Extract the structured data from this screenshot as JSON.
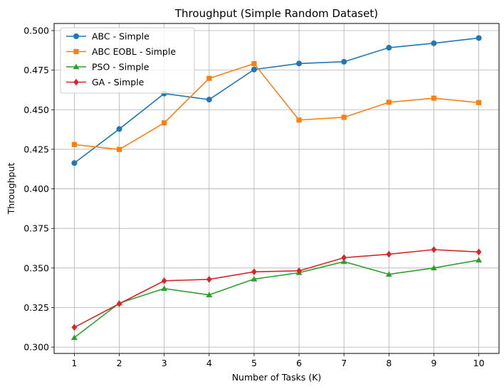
{
  "chart_data": {
    "type": "line",
    "title": "Throughput (Simple Random Dataset)",
    "xlabel": "Number of Tasks (K)",
    "ylabel": "Throughput",
    "x": [
      1,
      2,
      3,
      4,
      5,
      6,
      7,
      8,
      9,
      10
    ],
    "xticks": [
      "1",
      "2",
      "3",
      "4",
      "5",
      "6",
      "7",
      "8",
      "9",
      "10"
    ],
    "yticks": [
      "0.300",
      "0.325",
      "0.350",
      "0.375",
      "0.400",
      "0.425",
      "0.450",
      "0.475",
      "0.500"
    ],
    "ylim": [
      0.296,
      0.5045
    ],
    "xlim": [
      0.55,
      10.45
    ],
    "grid": true,
    "legend_position": "top-left",
    "series": [
      {
        "name": "ABC - Simple",
        "color": "#1f77b4",
        "marker": "circle",
        "values": [
          0.4163,
          0.4378,
          0.4602,
          0.4564,
          0.4754,
          0.4792,
          0.4803,
          0.4892,
          0.492,
          0.4953
        ]
      },
      {
        "name": "ABC EOBL - Simple",
        "color": "#ff7f0e",
        "marker": "square",
        "values": [
          0.428,
          0.4249,
          0.4417,
          0.4698,
          0.4791,
          0.4435,
          0.4452,
          0.4547,
          0.4573,
          0.4545
        ]
      },
      {
        "name": "PSO - Simple",
        "color": "#2ca02c",
        "marker": "triangle",
        "values": [
          0.306,
          0.3278,
          0.337,
          0.333,
          0.343,
          0.347,
          0.354,
          0.346,
          0.35,
          0.355
        ]
      },
      {
        "name": "GA - Simple",
        "color": "#d62728",
        "marker": "diamond",
        "values": [
          0.3125,
          0.3274,
          0.3419,
          0.3428,
          0.3476,
          0.3482,
          0.3565,
          0.3587,
          0.3616,
          0.3601
        ]
      }
    ]
  }
}
